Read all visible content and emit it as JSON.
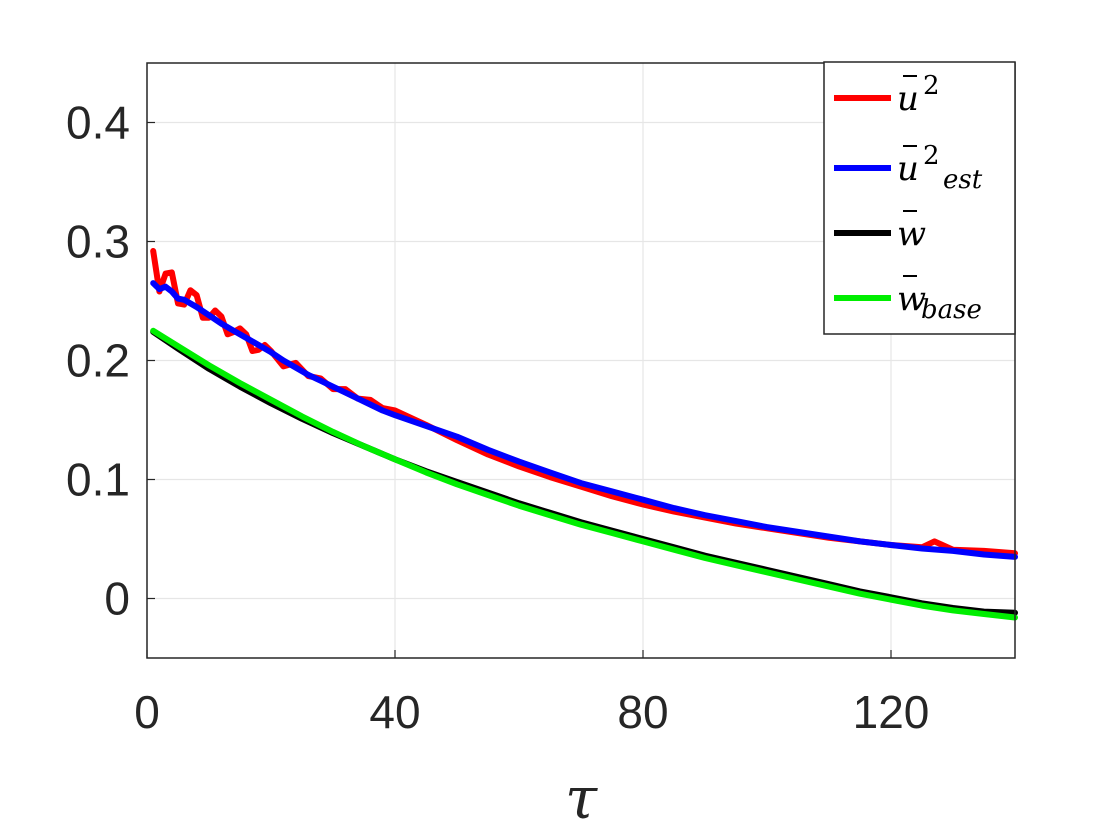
{
  "chart_data": {
    "type": "line",
    "title": "",
    "xlabel": "τ",
    "ylabel": "",
    "xlim": [
      0,
      140
    ],
    "ylim": [
      -0.05,
      0.45
    ],
    "xticks": [
      0,
      40,
      80,
      120
    ],
    "xtick_labels": [
      "0",
      "40",
      "80",
      "120"
    ],
    "yticks": [
      0,
      0.1,
      0.2,
      0.3,
      0.4
    ],
    "ytick_labels": [
      "0",
      "0.1",
      "0.2",
      "0.3",
      "0.4"
    ],
    "grid": true,
    "legend_position": "top-right",
    "legend": [
      {
        "label": "ū²",
        "base": "u",
        "sup": "2",
        "sub": "",
        "color": "#ff0000"
      },
      {
        "label": "ū²_est",
        "base": "u",
        "sup": "2",
        "sub": "est",
        "color": "#0000ff"
      },
      {
        "label": "w̄",
        "base": "w",
        "sup": "",
        "sub": "",
        "color": "#000000"
      },
      {
        "label": "w̄_base",
        "base": "w",
        "sup": "",
        "sub": "base",
        "color": "#00ee00"
      }
    ],
    "series": [
      {
        "color": "#ff0000",
        "points": [
          [
            1,
            0.292
          ],
          [
            2,
            0.258
          ],
          [
            3,
            0.273
          ],
          [
            4,
            0.274
          ],
          [
            5,
            0.248
          ],
          [
            6,
            0.247
          ],
          [
            7,
            0.259
          ],
          [
            8,
            0.255
          ],
          [
            9,
            0.236
          ],
          [
            10,
            0.236
          ],
          [
            11,
            0.242
          ],
          [
            12,
            0.237
          ],
          [
            13,
            0.222
          ],
          [
            14,
            0.224
          ],
          [
            15,
            0.227
          ],
          [
            16,
            0.222
          ],
          [
            17,
            0.208
          ],
          [
            18,
            0.209
          ],
          [
            19,
            0.213
          ],
          [
            20,
            0.208
          ],
          [
            22,
            0.195
          ],
          [
            24,
            0.198
          ],
          [
            26,
            0.187
          ],
          [
            28,
            0.185
          ],
          [
            30,
            0.176
          ],
          [
            32,
            0.176
          ],
          [
            34,
            0.168
          ],
          [
            36,
            0.167
          ],
          [
            38,
            0.16
          ],
          [
            40,
            0.158
          ],
          [
            45,
            0.146
          ],
          [
            50,
            0.133
          ],
          [
            55,
            0.121
          ],
          [
            60,
            0.111
          ],
          [
            65,
            0.102
          ],
          [
            70,
            0.094
          ],
          [
            75,
            0.086
          ],
          [
            80,
            0.079
          ],
          [
            85,
            0.073
          ],
          [
            90,
            0.068
          ],
          [
            95,
            0.063
          ],
          [
            100,
            0.059
          ],
          [
            105,
            0.055
          ],
          [
            110,
            0.051
          ],
          [
            115,
            0.048
          ],
          [
            120,
            0.045
          ],
          [
            125,
            0.043
          ],
          [
            127,
            0.048
          ],
          [
            130,
            0.041
          ],
          [
            135,
            0.04
          ],
          [
            140,
            0.038
          ]
        ]
      },
      {
        "color": "#0000ff",
        "points": [
          [
            1,
            0.265
          ],
          [
            2,
            0.26
          ],
          [
            3,
            0.262
          ],
          [
            4,
            0.258
          ],
          [
            5,
            0.252
          ],
          [
            6,
            0.251
          ],
          [
            8,
            0.245
          ],
          [
            10,
            0.238
          ],
          [
            12,
            0.231
          ],
          [
            14,
            0.225
          ],
          [
            16,
            0.219
          ],
          [
            18,
            0.213
          ],
          [
            20,
            0.207
          ],
          [
            22,
            0.2
          ],
          [
            24,
            0.194
          ],
          [
            26,
            0.188
          ],
          [
            28,
            0.183
          ],
          [
            30,
            0.178
          ],
          [
            32,
            0.173
          ],
          [
            34,
            0.168
          ],
          [
            36,
            0.163
          ],
          [
            38,
            0.158
          ],
          [
            40,
            0.154
          ],
          [
            45,
            0.145
          ],
          [
            50,
            0.136
          ],
          [
            55,
            0.125
          ],
          [
            60,
            0.115
          ],
          [
            65,
            0.106
          ],
          [
            70,
            0.097
          ],
          [
            75,
            0.09
          ],
          [
            80,
            0.083
          ],
          [
            85,
            0.076
          ],
          [
            90,
            0.07
          ],
          [
            95,
            0.065
          ],
          [
            100,
            0.06
          ],
          [
            105,
            0.056
          ],
          [
            110,
            0.052
          ],
          [
            115,
            0.048
          ],
          [
            120,
            0.045
          ],
          [
            125,
            0.042
          ],
          [
            130,
            0.04
          ],
          [
            135,
            0.037
          ],
          [
            140,
            0.035
          ]
        ]
      },
      {
        "color": "#000000",
        "points": [
          [
            1,
            0.224
          ],
          [
            5,
            0.21
          ],
          [
            10,
            0.193
          ],
          [
            15,
            0.178
          ],
          [
            20,
            0.164
          ],
          [
            25,
            0.151
          ],
          [
            30,
            0.139
          ],
          [
            35,
            0.128
          ],
          [
            40,
            0.117
          ],
          [
            45,
            0.107
          ],
          [
            50,
            0.098
          ],
          [
            55,
            0.089
          ],
          [
            60,
            0.08
          ],
          [
            65,
            0.072
          ],
          [
            70,
            0.064
          ],
          [
            75,
            0.057
          ],
          [
            80,
            0.05
          ],
          [
            85,
            0.043
          ],
          [
            90,
            0.036
          ],
          [
            95,
            0.03
          ],
          [
            100,
            0.024
          ],
          [
            105,
            0.018
          ],
          [
            110,
            0.012
          ],
          [
            115,
            0.006
          ],
          [
            120,
            0.001
          ],
          [
            125,
            -0.004
          ],
          [
            130,
            -0.008
          ],
          [
            135,
            -0.011
          ],
          [
            140,
            -0.012
          ]
        ]
      },
      {
        "color": "#00ee00",
        "points": [
          [
            1,
            0.225
          ],
          [
            5,
            0.212
          ],
          [
            10,
            0.196
          ],
          [
            15,
            0.181
          ],
          [
            20,
            0.167
          ],
          [
            25,
            0.153
          ],
          [
            30,
            0.14
          ],
          [
            35,
            0.128
          ],
          [
            40,
            0.117
          ],
          [
            45,
            0.106
          ],
          [
            50,
            0.096
          ],
          [
            55,
            0.087
          ],
          [
            60,
            0.078
          ],
          [
            65,
            0.07
          ],
          [
            70,
            0.062
          ],
          [
            75,
            0.055
          ],
          [
            80,
            0.048
          ],
          [
            85,
            0.041
          ],
          [
            90,
            0.034
          ],
          [
            95,
            0.028
          ],
          [
            100,
            0.022
          ],
          [
            105,
            0.016
          ],
          [
            110,
            0.01
          ],
          [
            115,
            0.004
          ],
          [
            120,
            -0.001
          ],
          [
            125,
            -0.006
          ],
          [
            130,
            -0.01
          ],
          [
            135,
            -0.013
          ],
          [
            140,
            -0.016
          ]
        ]
      }
    ]
  }
}
